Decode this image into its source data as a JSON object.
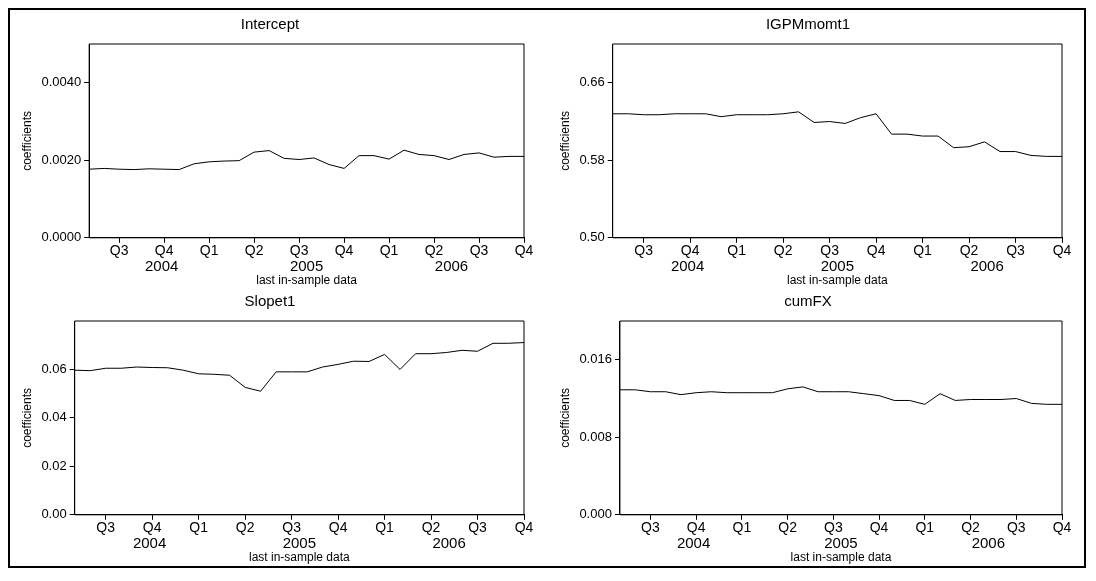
{
  "chart_data": [
    {
      "type": "line",
      "title": "Intercept",
      "xlabel": "last in-sample data",
      "ylabel": "coefficients",
      "x": [
        "2004-05",
        "2004-06",
        "2004-07",
        "2004-08",
        "2004-09",
        "2004-10",
        "2004-11",
        "2004-12",
        "2005-01",
        "2005-02",
        "2005-03",
        "2005-04",
        "2005-05",
        "2005-06",
        "2005-07",
        "2005-08",
        "2005-09",
        "2005-10",
        "2005-11",
        "2005-12",
        "2006-01",
        "2006-02",
        "2006-03",
        "2006-04",
        "2006-05",
        "2006-06",
        "2006-07",
        "2006-08",
        "2006-09",
        "2006-10"
      ],
      "series": [
        {
          "color": "#000000",
          "values": [
            0.00177,
            0.00179,
            0.00177,
            0.00176,
            0.00178,
            0.00177,
            0.00176,
            0.00191,
            0.00196,
            0.00198,
            0.00199,
            0.00221,
            0.00225,
            0.00205,
            0.00202,
            0.00206,
            0.00189,
            0.00179,
            0.00212,
            0.00212,
            0.00203,
            0.00226,
            0.00215,
            0.00212,
            0.00202,
            0.00215,
            0.00219,
            0.00208,
            0.0021,
            0.0021
          ]
        }
      ],
      "xlim": [
        "2004-05",
        "2006-10"
      ],
      "xticks": [
        {
          "value": "2004-07",
          "label": "Q3"
        },
        {
          "value": "2004-10",
          "label": "Q4"
        },
        {
          "value": "2005-01",
          "label": "Q1"
        },
        {
          "value": "2005-04",
          "label": "Q2"
        },
        {
          "value": "2005-07",
          "label": "Q3"
        },
        {
          "value": "2005-10",
          "label": "Q4"
        },
        {
          "value": "2006-01",
          "label": "Q1"
        },
        {
          "value": "2006-04",
          "label": "Q2"
        },
        {
          "value": "2006-07",
          "label": "Q3"
        },
        {
          "value": "2006-10",
          "label": "Q4"
        }
      ],
      "ylim": [
        0,
        0.005
      ],
      "yticks": [
        {
          "value": 0,
          "label": "0.0000"
        },
        {
          "value": 0.002,
          "label": "0.0020"
        },
        {
          "value": 0.004,
          "label": "0.0040"
        }
      ],
      "annotations": [
        "2004",
        "2005",
        "2006"
      ],
      "grid": false,
      "legend": false,
      "marker": "none",
      "line_style": "solid"
    },
    {
      "type": "line",
      "title": "IGPMmomt1",
      "xlabel": "last in-sample data",
      "ylabel": "coefficients",
      "x": [
        "2004-05",
        "2004-06",
        "2004-07",
        "2004-08",
        "2004-09",
        "2004-10",
        "2004-11",
        "2004-12",
        "2005-01",
        "2005-02",
        "2005-03",
        "2005-04",
        "2005-05",
        "2005-06",
        "2005-07",
        "2005-08",
        "2005-09",
        "2005-10",
        "2005-11",
        "2005-12",
        "2006-01",
        "2006-02",
        "2006-03",
        "2006-04",
        "2006-05",
        "2006-06",
        "2006-07",
        "2006-08",
        "2006-09",
        "2006-10"
      ],
      "series": [
        {
          "color": "#000000",
          "values": [
            0.628,
            0.628,
            0.627,
            0.627,
            0.628,
            0.628,
            0.628,
            0.625,
            0.627,
            0.627,
            0.627,
            0.628,
            0.63,
            0.619,
            0.62,
            0.618,
            0.624,
            0.628,
            0.607,
            0.607,
            0.605,
            0.605,
            0.593,
            0.594,
            0.599,
            0.589,
            0.589,
            0.585,
            0.584,
            0.584
          ]
        }
      ],
      "xlim": [
        "2004-05",
        "2006-10"
      ],
      "xticks": [
        {
          "value": "2004-07",
          "label": "Q3"
        },
        {
          "value": "2004-10",
          "label": "Q4"
        },
        {
          "value": "2005-01",
          "label": "Q1"
        },
        {
          "value": "2005-04",
          "label": "Q2"
        },
        {
          "value": "2005-07",
          "label": "Q3"
        },
        {
          "value": "2005-10",
          "label": "Q4"
        },
        {
          "value": "2006-01",
          "label": "Q1"
        },
        {
          "value": "2006-04",
          "label": "Q2"
        },
        {
          "value": "2006-07",
          "label": "Q3"
        },
        {
          "value": "2006-10",
          "label": "Q4"
        }
      ],
      "ylim": [
        0.5,
        0.7
      ],
      "yticks": [
        {
          "value": 0.5,
          "label": "0.50"
        },
        0.58,
        0.66
      ],
      "annotations": [
        "2004",
        "2005",
        "2006"
      ],
      "grid": false,
      "legend": false,
      "marker": "none",
      "line_style": "solid"
    },
    {
      "type": "line",
      "title": "Slopet1",
      "xlabel": "last in-sample data",
      "ylabel": "coefficients",
      "x": [
        "2004-05",
        "2004-06",
        "2004-07",
        "2004-08",
        "2004-09",
        "2004-10",
        "2004-11",
        "2004-12",
        "2005-01",
        "2005-02",
        "2005-03",
        "2005-04",
        "2005-05",
        "2005-06",
        "2005-07",
        "2005-08",
        "2005-09",
        "2005-10",
        "2005-11",
        "2005-12",
        "2006-01",
        "2006-02",
        "2006-03",
        "2006-04",
        "2006-05",
        "2006-06",
        "2006-07",
        "2006-08",
        "2006-09",
        "2006-10"
      ],
      "series": [
        {
          "color": "#000000",
          "values": [
            0.0597,
            0.0595,
            0.0605,
            0.0605,
            0.061,
            0.0608,
            0.0607,
            0.0597,
            0.0582,
            0.058,
            0.0576,
            0.0526,
            0.051,
            0.059,
            0.059,
            0.059,
            0.061,
            0.0621,
            0.0634,
            0.0633,
            0.0662,
            0.06,
            0.0665,
            0.0665,
            0.067,
            0.0679,
            0.0675,
            0.0708,
            0.0708,
            0.0711
          ]
        }
      ],
      "xlim": [
        "2004-05",
        "2006-10"
      ],
      "xticks": [
        {
          "value": "2004-07",
          "label": "Q3"
        },
        {
          "value": "2004-10",
          "label": "Q4"
        },
        {
          "value": "2005-01",
          "label": "Q1"
        },
        {
          "value": "2005-04",
          "label": "Q2"
        },
        {
          "value": "2005-07",
          "label": "Q3"
        },
        {
          "value": "2005-10",
          "label": "Q4"
        },
        {
          "value": "2006-01",
          "label": "Q1"
        },
        {
          "value": "2006-04",
          "label": "Q2"
        },
        {
          "value": "2006-07",
          "label": "Q3"
        },
        {
          "value": "2006-10",
          "label": "Q4"
        }
      ],
      "ylim": [
        0,
        0.08
      ],
      "yticks": [
        {
          "value": 0,
          "label": "0.00"
        },
        0.02,
        0.04,
        0.06
      ],
      "annotations": [
        "2004",
        "2005",
        "2006"
      ],
      "grid": false,
      "legend": false,
      "marker": "none",
      "line_style": "solid"
    },
    {
      "type": "line",
      "title": "cumFX",
      "xlabel": "last in-sample data",
      "ylabel": "coefficients",
      "x": [
        "2004-05",
        "2004-06",
        "2004-07",
        "2004-08",
        "2004-09",
        "2004-10",
        "2004-11",
        "2004-12",
        "2005-01",
        "2005-02",
        "2005-03",
        "2005-04",
        "2005-05",
        "2005-06",
        "2005-07",
        "2005-08",
        "2005-09",
        "2005-10",
        "2005-11",
        "2005-12",
        "2006-01",
        "2006-02",
        "2006-03",
        "2006-04",
        "2006-05",
        "2006-06",
        "2006-07",
        "2006-08",
        "2006-09",
        "2006-10"
      ],
      "series": [
        {
          "color": "#000000",
          "values": [
            0.0129,
            0.0129,
            0.0127,
            0.0127,
            0.0124,
            0.0126,
            0.0127,
            0.0126,
            0.0126,
            0.0126,
            0.0126,
            0.013,
            0.0132,
            0.0127,
            0.0127,
            0.0127,
            0.0125,
            0.0123,
            0.0118,
            0.0118,
            0.0114,
            0.0125,
            0.0118,
            0.0119,
            0.0119,
            0.0119,
            0.012,
            0.0115,
            0.0114,
            0.0114
          ]
        }
      ],
      "xlim": [
        "2004-05",
        "2006-10"
      ],
      "xticks": [
        {
          "value": "2004-07",
          "label": "Q3"
        },
        {
          "value": "2004-10",
          "label": "Q4"
        },
        {
          "value": "2005-01",
          "label": "Q1"
        },
        {
          "value": "2005-04",
          "label": "Q2"
        },
        {
          "value": "2005-07",
          "label": "Q3"
        },
        {
          "value": "2005-10",
          "label": "Q4"
        },
        {
          "value": "2006-01",
          "label": "Q1"
        },
        {
          "value": "2006-04",
          "label": "Q2"
        },
        {
          "value": "2006-07",
          "label": "Q3"
        },
        {
          "value": "2006-10",
          "label": "Q4"
        }
      ],
      "ylim": [
        0,
        0.02
      ],
      "yticks": [
        {
          "value": 0,
          "label": "0.000"
        },
        0.008,
        0.016
      ],
      "annotations": [
        "2004",
        "2005",
        "2006"
      ],
      "grid": false,
      "legend": false,
      "marker": "none",
      "line_style": "solid"
    }
  ]
}
